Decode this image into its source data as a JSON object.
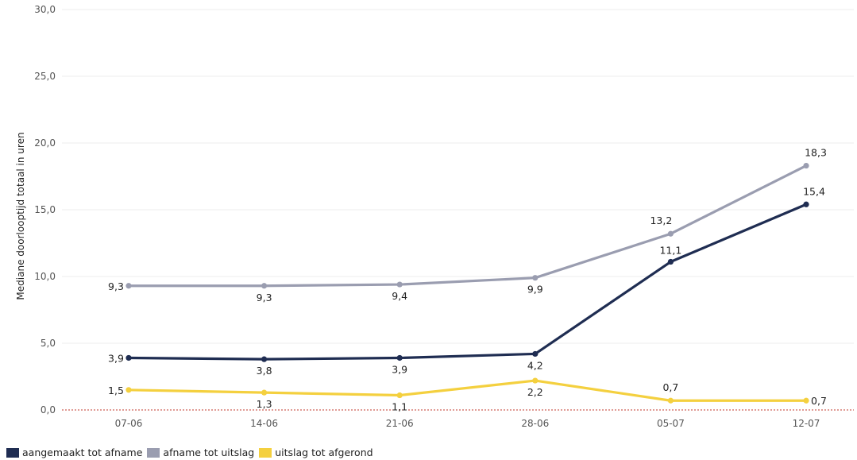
{
  "chart_data": {
    "type": "line",
    "categories": [
      "07-06",
      "14-06",
      "21-06",
      "28-06",
      "05-07",
      "12-07"
    ],
    "ylabel": "Mediane doorlooptijd totaal in uren",
    "ylim": [
      0,
      30
    ],
    "yticks": [
      "0,0",
      "5,0",
      "10,0",
      "15,0",
      "20,0",
      "25,0",
      "30,0"
    ],
    "ytick_values": [
      0,
      5,
      10,
      15,
      20,
      25,
      30
    ],
    "grid": true,
    "legend_position": "bottom-left",
    "series": [
      {
        "name": "aangemaakt tot afname",
        "color": "#1f2d52",
        "values": [
          3.9,
          3.8,
          3.9,
          4.2,
          11.1,
          15.4
        ],
        "labels": [
          "3,9",
          "3,8",
          "3,9",
          "4,2",
          "11,1",
          "15,4"
        ]
      },
      {
        "name": "afname tot uitslag",
        "color": "#9a9db0",
        "values": [
          9.3,
          9.3,
          9.4,
          9.9,
          13.2,
          18.3
        ],
        "labels": [
          "9,3",
          "9,3",
          "9,4",
          "9,9",
          "13,2",
          "18,3"
        ]
      },
      {
        "name": "uitslag tot afgerond",
        "color": "#f4d03f",
        "values": [
          1.5,
          1.3,
          1.1,
          2.2,
          0.7,
          0.7
        ],
        "labels": [
          "1,5",
          "1,3",
          "1,1",
          "2,2",
          "0,7",
          "0,7"
        ]
      }
    ]
  }
}
